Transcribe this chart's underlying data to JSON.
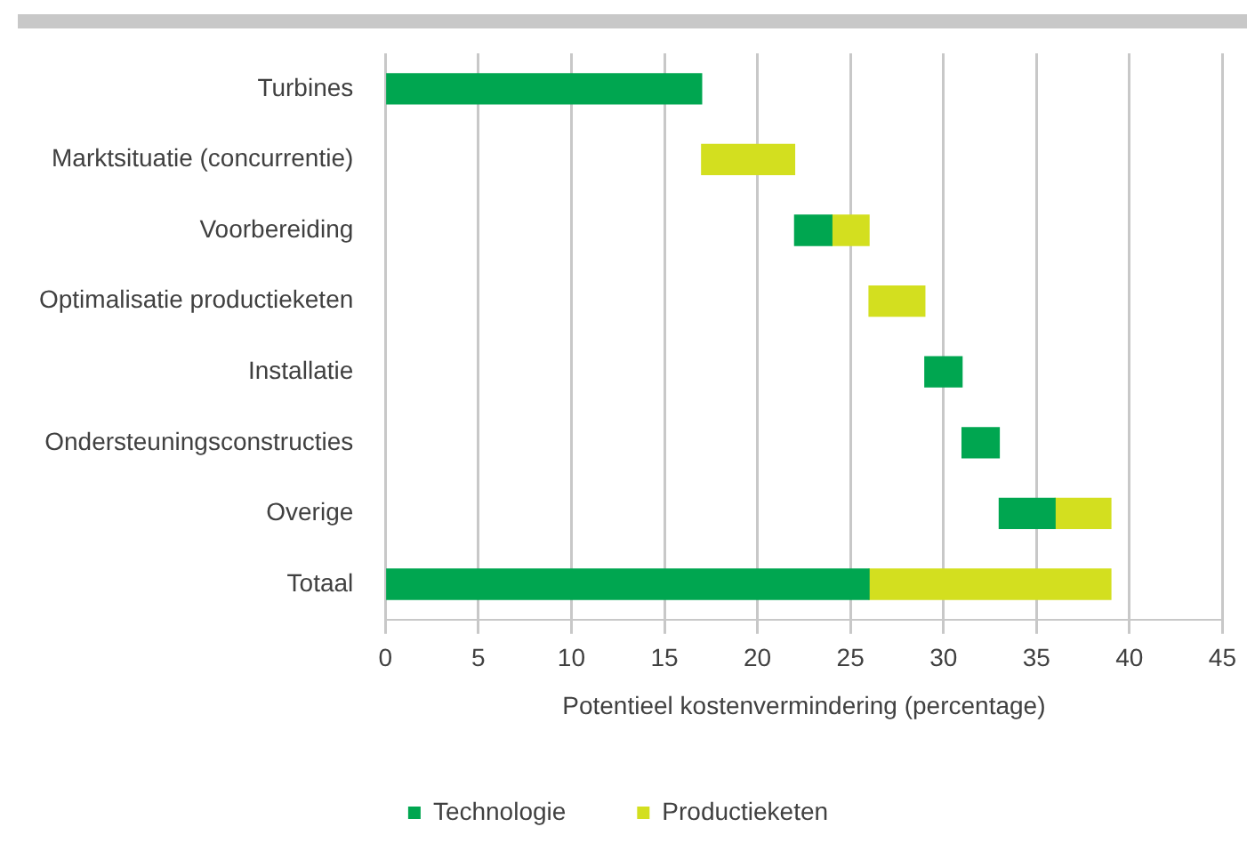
{
  "chart_data": {
    "type": "bar",
    "orientation": "horizontal",
    "xlabel": "Potentieel kostenvermindering (percentage)",
    "categories": [
      "Turbines",
      "Marktsituatie (concurrentie)",
      "Voorbereiding",
      "Optimalisatie productieketen",
      "Installatie",
      "Ondersteuningsconstructies",
      "Overige",
      "Totaal"
    ],
    "series": [
      {
        "name": "Technologie",
        "color": "#00a650",
        "values": [
          17,
          null,
          2,
          null,
          2,
          2,
          3,
          26
        ],
        "base": [
          0,
          null,
          22,
          null,
          29,
          31,
          33,
          0
        ]
      },
      {
        "name": "Productieketen",
        "color": "#d3df1f",
        "values": [
          null,
          5,
          2,
          3,
          null,
          null,
          3,
          13
        ],
        "base": [
          null,
          17,
          24,
          26,
          null,
          null,
          36,
          26
        ]
      }
    ],
    "xlim": [
      0,
      45
    ],
    "xticks": [
      0,
      5,
      10,
      15,
      20,
      25,
      30,
      35,
      40,
      45
    ],
    "grid": "x",
    "legend": "bottom"
  }
}
